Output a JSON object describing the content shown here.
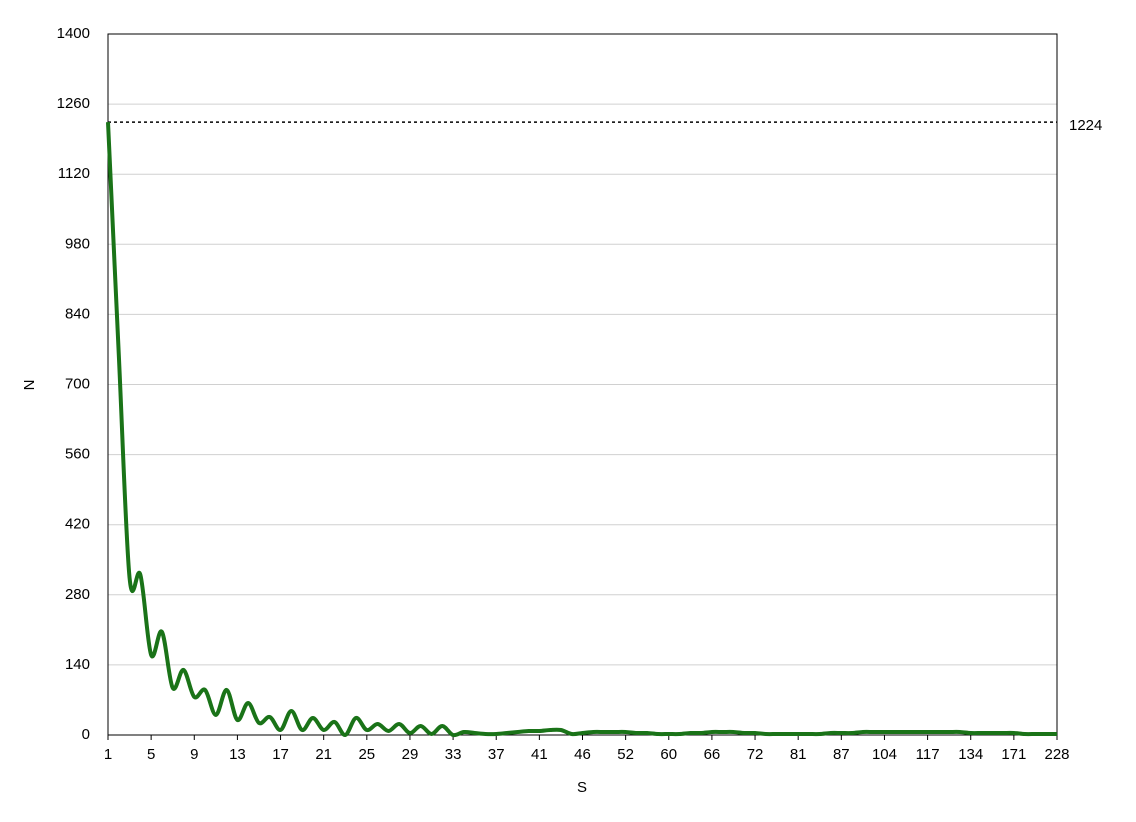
{
  "chart_data": {
    "type": "line",
    "x_label": "S",
    "y_label": "N",
    "color": "#1a7318",
    "grid": true,
    "hline": 1224,
    "categories": [
      "1",
      null,
      null,
      null,
      "5",
      null,
      null,
      null,
      "9",
      null,
      null,
      null,
      "13",
      null,
      null,
      null,
      "17",
      null,
      null,
      null,
      "21",
      null,
      null,
      null,
      "25",
      null,
      null,
      null,
      "29",
      null,
      null,
      null,
      "33",
      null,
      null,
      null,
      "37",
      null,
      null,
      null,
      "41",
      null,
      null,
      null,
      "46",
      null,
      null,
      null,
      "52",
      null,
      null,
      null,
      "60",
      null,
      null,
      null,
      "66",
      null,
      null,
      null,
      "72",
      null,
      null,
      null,
      "81",
      null,
      null,
      null,
      "87",
      null,
      null,
      null,
      "104",
      null,
      null,
      null,
      "117",
      null,
      null,
      null,
      "134",
      null,
      null,
      null,
      "171",
      null,
      null,
      null,
      "228"
    ],
    "values": [
      1224,
      760,
      314,
      320,
      160,
      206,
      94,
      130,
      76,
      90,
      40,
      90,
      30,
      64,
      24,
      36,
      10,
      48,
      10,
      34,
      10,
      26,
      0,
      34,
      10,
      22,
      8,
      22,
      4,
      18,
      2,
      18,
      0,
      6,
      4,
      2,
      2,
      4,
      6,
      8,
      8,
      10,
      10,
      2,
      4,
      6,
      6,
      6,
      6,
      4,
      4,
      2,
      2,
      2,
      4,
      4,
      6,
      6,
      6,
      4,
      4,
      2,
      2,
      2,
      2,
      2,
      2,
      4,
      4,
      4,
      6,
      6,
      6,
      6,
      6,
      6,
      6,
      6,
      6,
      6,
      4,
      4,
      4,
      4,
      4,
      2,
      2,
      2,
      2
    ],
    "ylim": [
      0,
      1400
    ],
    "yticks": [
      0,
      140,
      280,
      420,
      560,
      700,
      840,
      980,
      1120,
      1260,
      1400
    ]
  }
}
